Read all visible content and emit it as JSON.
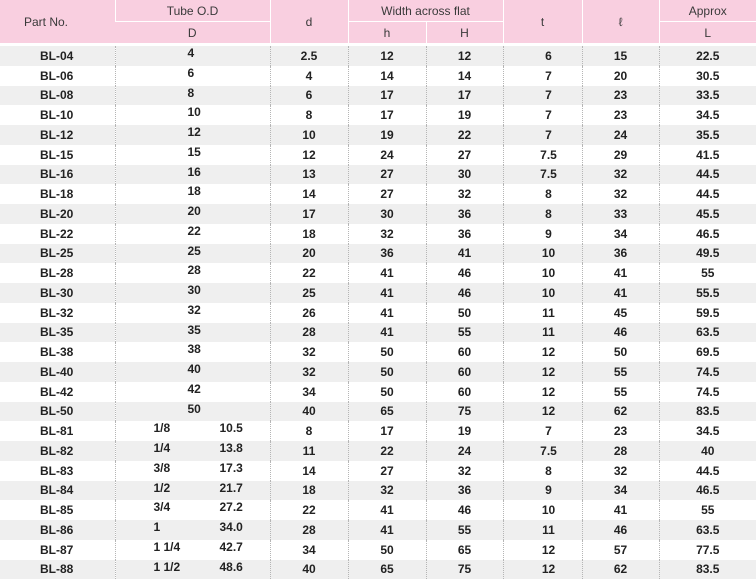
{
  "headers": {
    "part_no": "Part No.",
    "tube_od": "Tube O.D",
    "tube_od_sub": "D",
    "d": "d",
    "width": "Width across flat",
    "h": "h",
    "H": "H",
    "t": "t",
    "l": "ℓ",
    "approx": "Approx",
    "L": "L"
  },
  "rows": [
    {
      "part": "BL-04",
      "od": "4",
      "od2": "",
      "d": "2.5",
      "h": "12",
      "H": "12",
      "t": "6",
      "l": "15",
      "L": "22.5"
    },
    {
      "part": "BL-06",
      "od": "6",
      "od2": "",
      "d": "4",
      "h": "14",
      "H": "14",
      "t": "7",
      "l": "20",
      "L": "30.5"
    },
    {
      "part": "BL-08",
      "od": "8",
      "od2": "",
      "d": "6",
      "h": "17",
      "H": "17",
      "t": "7",
      "l": "23",
      "L": "33.5"
    },
    {
      "part": "BL-10",
      "od": "10",
      "od2": "",
      "d": "8",
      "h": "17",
      "H": "19",
      "t": "7",
      "l": "23",
      "L": "34.5"
    },
    {
      "part": "BL-12",
      "od": "12",
      "od2": "",
      "d": "10",
      "h": "19",
      "H": "22",
      "t": "7",
      "l": "24",
      "L": "35.5"
    },
    {
      "part": "BL-15",
      "od": "15",
      "od2": "",
      "d": "12",
      "h": "24",
      "H": "27",
      "t": "7.5",
      "l": "29",
      "L": "41.5"
    },
    {
      "part": "BL-16",
      "od": "16",
      "od2": "",
      "d": "13",
      "h": "27",
      "H": "30",
      "t": "7.5",
      "l": "32",
      "L": "44.5"
    },
    {
      "part": "BL-18",
      "od": "18",
      "od2": "",
      "d": "14",
      "h": "27",
      "H": "32",
      "t": "8",
      "l": "32",
      "L": "44.5"
    },
    {
      "part": "BL-20",
      "od": "20",
      "od2": "",
      "d": "17",
      "h": "30",
      "H": "36",
      "t": "8",
      "l": "33",
      "L": "45.5"
    },
    {
      "part": "BL-22",
      "od": "22",
      "od2": "",
      "d": "18",
      "h": "32",
      "H": "36",
      "t": "9",
      "l": "34",
      "L": "46.5"
    },
    {
      "part": "BL-25",
      "od": "25",
      "od2": "",
      "d": "20",
      "h": "36",
      "H": "41",
      "t": "10",
      "l": "36",
      "L": "49.5"
    },
    {
      "part": "BL-28",
      "od": "28",
      "od2": "",
      "d": "22",
      "h": "41",
      "H": "46",
      "t": "10",
      "l": "41",
      "L": "55"
    },
    {
      "part": "BL-30",
      "od": "30",
      "od2": "",
      "d": "25",
      "h": "41",
      "H": "46",
      "t": "10",
      "l": "41",
      "L": "55.5"
    },
    {
      "part": "BL-32",
      "od": "32",
      "od2": "",
      "d": "26",
      "h": "41",
      "H": "50",
      "t": "11",
      "l": "45",
      "L": "59.5"
    },
    {
      "part": "BL-35",
      "od": "35",
      "od2": "",
      "d": "28",
      "h": "41",
      "H": "55",
      "t": "11",
      "l": "46",
      "L": "63.5"
    },
    {
      "part": "BL-38",
      "od": "38",
      "od2": "",
      "d": "32",
      "h": "50",
      "H": "60",
      "t": "12",
      "l": "50",
      "L": "69.5"
    },
    {
      "part": "BL-40",
      "od": "40",
      "od2": "",
      "d": "32",
      "h": "50",
      "H": "60",
      "t": "12",
      "l": "55",
      "L": "74.5"
    },
    {
      "part": "BL-42",
      "od": "42",
      "od2": "",
      "d": "34",
      "h": "50",
      "H": "60",
      "t": "12",
      "l": "55",
      "L": "74.5"
    },
    {
      "part": "BL-50",
      "od": "50",
      "od2": "",
      "d": "40",
      "h": "65",
      "H": "75",
      "t": "12",
      "l": "62",
      "L": "83.5"
    },
    {
      "part": "BL-81",
      "od": "1/8",
      "od2": "10.5",
      "d": "8",
      "h": "17",
      "H": "19",
      "t": "7",
      "l": "23",
      "L": "34.5"
    },
    {
      "part": "BL-82",
      "od": "1/4",
      "od2": "13.8",
      "d": "11",
      "h": "22",
      "H": "24",
      "t": "7.5",
      "l": "28",
      "L": "40"
    },
    {
      "part": "BL-83",
      "od": "3/8",
      "od2": "17.3",
      "d": "14",
      "h": "27",
      "H": "32",
      "t": "8",
      "l": "32",
      "L": "44.5"
    },
    {
      "part": "BL-84",
      "od": "1/2",
      "od2": "21.7",
      "d": "18",
      "h": "32",
      "H": "36",
      "t": "9",
      "l": "34",
      "L": "46.5"
    },
    {
      "part": "BL-85",
      "od": "3/4",
      "od2": "27.2",
      "d": "22",
      "h": "41",
      "H": "46",
      "t": "10",
      "l": "41",
      "L": "55"
    },
    {
      "part": "BL-86",
      "od": "1",
      "od2": "34.0",
      "d": "28",
      "h": "41",
      "H": "55",
      "t": "11",
      "l": "46",
      "L": "63.5"
    },
    {
      "part": "BL-87",
      "od": "1 1/4",
      "od2": "42.7",
      "d": "34",
      "h": "50",
      "H": "65",
      "t": "12",
      "l": "57",
      "L": "77.5"
    },
    {
      "part": "BL-88",
      "od": "1 1/2",
      "od2": "48.6",
      "d": "40",
      "h": "65",
      "H": "75",
      "t": "12",
      "l": "62",
      "L": "83.5"
    }
  ]
}
